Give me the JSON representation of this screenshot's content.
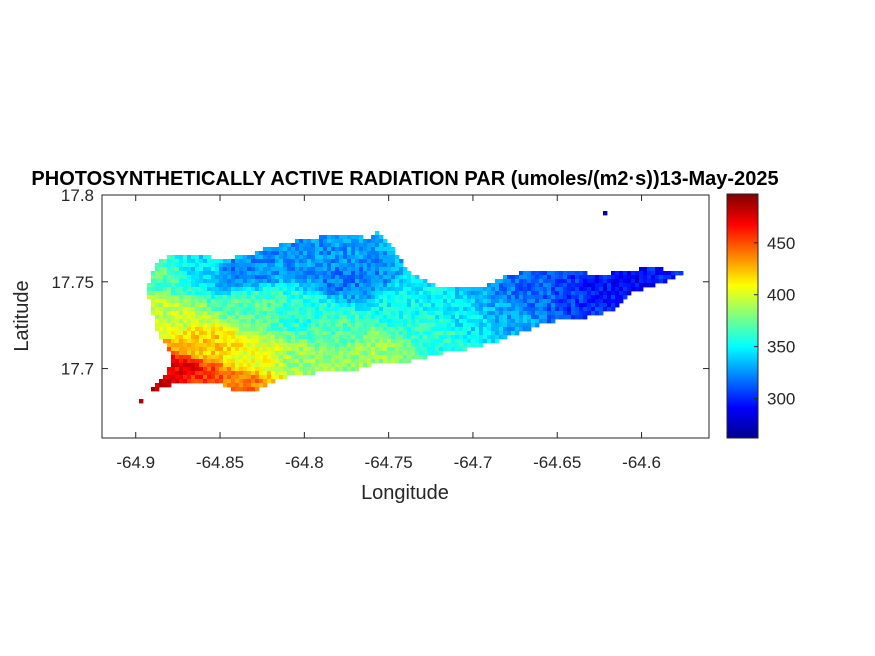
{
  "chart_data": {
    "type": "heatmap",
    "title": "PHOTOSYNTHETICALLY ACTIVE RADIATION PAR (umoles/(m2·s))13-May-2025",
    "xlabel": "Longitude",
    "ylabel": "Latitude",
    "xlim": [
      -64.92,
      -64.56
    ],
    "ylim": [
      17.66,
      17.8
    ],
    "xticks": [
      -64.9,
      -64.85,
      -64.8,
      -64.75,
      -64.7,
      -64.65,
      -64.6
    ],
    "xtick_labels": [
      "-64.9",
      "-64.85",
      "-64.8",
      "-64.75",
      "-64.7",
      "-64.65",
      "-64.6"
    ],
    "yticks": [
      17.7,
      17.75,
      17.8
    ],
    "ytick_labels": [
      "17.7",
      "17.75",
      "17.8"
    ],
    "colorbar": {
      "colormap": "jet",
      "range": [
        262,
        497
      ],
      "ticks": [
        300,
        350,
        400,
        450
      ],
      "tick_labels": [
        "300",
        "350",
        "400",
        "450"
      ]
    },
    "island_outline": [
      [
        -64.899,
        17.68
      ],
      [
        -64.895,
        17.683
      ],
      [
        -64.888,
        17.69
      ],
      [
        -64.882,
        17.697
      ],
      [
        -64.878,
        17.707
      ],
      [
        -64.887,
        17.72
      ],
      [
        -64.891,
        17.735
      ],
      [
        -64.893,
        17.745
      ],
      [
        -64.891,
        17.754
      ],
      [
        -64.886,
        17.762
      ],
      [
        -64.878,
        17.766
      ],
      [
        -64.865,
        17.766
      ],
      [
        -64.85,
        17.763
      ],
      [
        -64.835,
        17.765
      ],
      [
        -64.82,
        17.77
      ],
      [
        -64.8,
        17.775
      ],
      [
        -64.78,
        17.777
      ],
      [
        -64.77,
        17.778
      ],
      [
        -64.762,
        17.775
      ],
      [
        -64.757,
        17.779
      ],
      [
        -64.75,
        17.773
      ],
      [
        -64.742,
        17.761
      ],
      [
        -64.735,
        17.754
      ],
      [
        -64.722,
        17.748
      ],
      [
        -64.706,
        17.746
      ],
      [
        -64.692,
        17.748
      ],
      [
        -64.682,
        17.753
      ],
      [
        -64.67,
        17.756
      ],
      [
        -64.655,
        17.756
      ],
      [
        -64.64,
        17.756
      ],
      [
        -64.625,
        17.754
      ],
      [
        -64.608,
        17.757
      ],
      [
        -64.592,
        17.758
      ],
      [
        -64.575,
        17.756
      ],
      [
        -64.579,
        17.753
      ],
      [
        -64.59,
        17.749
      ],
      [
        -64.605,
        17.744
      ],
      [
        -64.615,
        17.735
      ],
      [
        -64.625,
        17.731
      ],
      [
        -64.637,
        17.729
      ],
      [
        -64.655,
        17.727
      ],
      [
        -64.668,
        17.722
      ],
      [
        -64.685,
        17.716
      ],
      [
        -64.7,
        17.712
      ],
      [
        -64.717,
        17.709
      ],
      [
        -64.733,
        17.705
      ],
      [
        -64.748,
        17.703
      ],
      [
        -64.762,
        17.702
      ],
      [
        -64.77,
        17.699
      ],
      [
        -64.785,
        17.698
      ],
      [
        -64.8,
        17.697
      ],
      [
        -64.815,
        17.694
      ],
      [
        -64.828,
        17.688
      ],
      [
        -64.835,
        17.686
      ],
      [
        -64.842,
        17.687
      ],
      [
        -64.85,
        17.691
      ],
      [
        -64.866,
        17.692
      ],
      [
        -64.876,
        17.691
      ],
      [
        -64.885,
        17.69
      ],
      [
        -64.892,
        17.684
      ],
      [
        -64.899,
        17.68
      ]
    ],
    "islet_outline": [
      [
        -64.625,
        17.79
      ],
      [
        -64.622,
        17.792
      ],
      [
        -64.619,
        17.79
      ],
      [
        -64.622,
        17.789
      ],
      [
        -64.625,
        17.79
      ]
    ],
    "value_field_anchors": [
      {
        "lon": -64.885,
        "lat": 17.69,
        "value": 480
      },
      {
        "lon": -64.875,
        "lat": 17.7,
        "value": 470
      },
      {
        "lon": -64.86,
        "lat": 17.693,
        "value": 455
      },
      {
        "lon": -64.84,
        "lat": 17.692,
        "value": 440
      },
      {
        "lon": -64.83,
        "lat": 17.705,
        "value": 405
      },
      {
        "lon": -64.86,
        "lat": 17.713,
        "value": 420
      },
      {
        "lon": -64.885,
        "lat": 17.73,
        "value": 395
      },
      {
        "lon": -64.885,
        "lat": 17.755,
        "value": 370
      },
      {
        "lon": -64.86,
        "lat": 17.757,
        "value": 345
      },
      {
        "lon": -64.84,
        "lat": 17.755,
        "value": 320
      },
      {
        "lon": -64.83,
        "lat": 17.735,
        "value": 370
      },
      {
        "lon": -64.8,
        "lat": 17.73,
        "value": 360
      },
      {
        "lon": -64.8,
        "lat": 17.705,
        "value": 385
      },
      {
        "lon": -64.78,
        "lat": 17.72,
        "value": 370
      },
      {
        "lon": -64.76,
        "lat": 17.71,
        "value": 385
      },
      {
        "lon": -64.8,
        "lat": 17.765,
        "value": 325
      },
      {
        "lon": -64.77,
        "lat": 17.75,
        "value": 320
      },
      {
        "lon": -64.74,
        "lat": 17.74,
        "value": 350
      },
      {
        "lon": -64.72,
        "lat": 17.72,
        "value": 360
      },
      {
        "lon": -64.7,
        "lat": 17.725,
        "value": 345
      },
      {
        "lon": -64.68,
        "lat": 17.73,
        "value": 330
      },
      {
        "lon": -64.66,
        "lat": 17.74,
        "value": 315
      },
      {
        "lon": -64.64,
        "lat": 17.74,
        "value": 305
      },
      {
        "lon": -64.62,
        "lat": 17.745,
        "value": 295
      },
      {
        "lon": -64.6,
        "lat": 17.75,
        "value": 290
      },
      {
        "lon": -64.58,
        "lat": 17.755,
        "value": 300
      },
      {
        "lon": -64.623,
        "lat": 17.79,
        "value": 285
      }
    ]
  }
}
